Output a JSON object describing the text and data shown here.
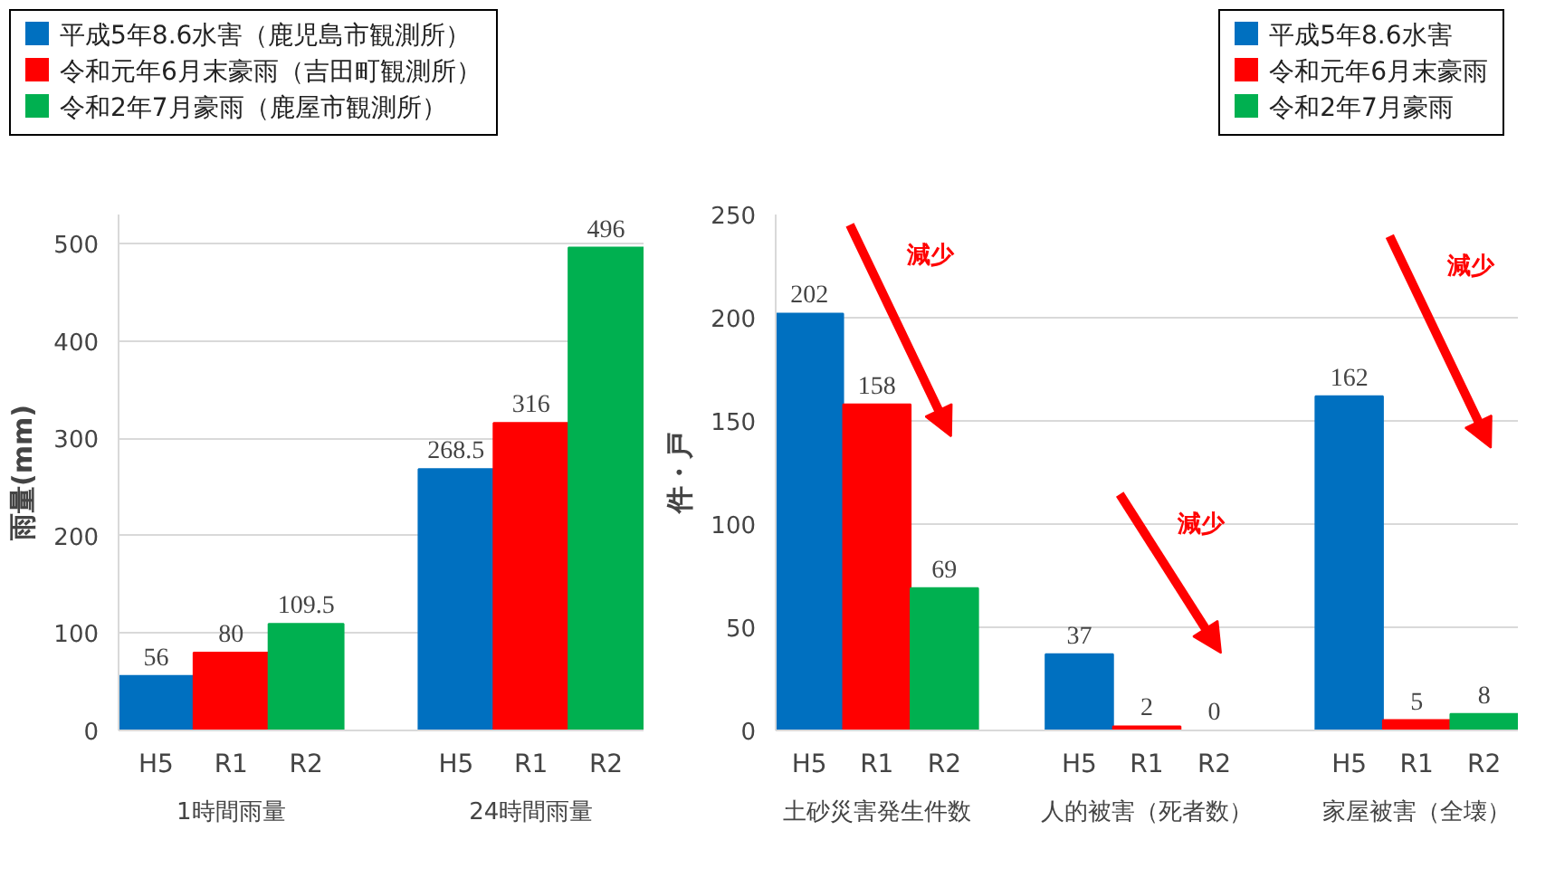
{
  "chart_data": [
    {
      "type": "bar",
      "categories": [
        "1時間雨量",
        "24時間雨量"
      ],
      "ylabel": "雨量(mm)",
      "ylim": [
        0,
        530
      ],
      "yticks": [
        0,
        100,
        200,
        300,
        400,
        500
      ],
      "grid": "y",
      "legend": "top left",
      "data_labels": true,
      "series": [
        {
          "name": "平成5年8.6水害（鹿児島市観測所）",
          "color": "#0070c0",
          "values": [
            56,
            268.5
          ]
        },
        {
          "name": "令和元年6月末豪雨（吉田町観測所）",
          "color": "#ff0000",
          "values": [
            80,
            316
          ]
        },
        {
          "name": "令和2年7月豪雨（鹿屋市観測所）",
          "color": "#00b050",
          "values": [
            109.5,
            496
          ]
        }
      ],
      "annotations": [
        "H5",
        "R1",
        "R2",
        "H5",
        "R1",
        "R2"
      ]
    },
    {
      "type": "bar",
      "categories": [
        "土砂災害発生件数",
        "人的被害（死者数）",
        "家屋被害（全壊）"
      ],
      "ylabel": "件・戸",
      "ylim": [
        0,
        250
      ],
      "yticks": [
        0,
        50,
        100,
        150,
        200,
        250
      ],
      "grid": "y",
      "legend": "top right",
      "data_labels": true,
      "series": [
        {
          "name": "平成5年8.6水害",
          "color": "#0070c0",
          "values": [
            202,
            37,
            162
          ]
        },
        {
          "name": "令和元年6月末豪雨",
          "color": "#ff0000",
          "values": [
            158,
            2,
            5
          ]
        },
        {
          "name": "令和2年7月豪雨",
          "color": "#00b050",
          "values": [
            69,
            0,
            8
          ]
        }
      ],
      "annotations": [
        "H5",
        "R1",
        "R2",
        "H5",
        "R1",
        "R2",
        "H5",
        "R1",
        "R2",
        "減少",
        "減少",
        "減少"
      ]
    }
  ]
}
